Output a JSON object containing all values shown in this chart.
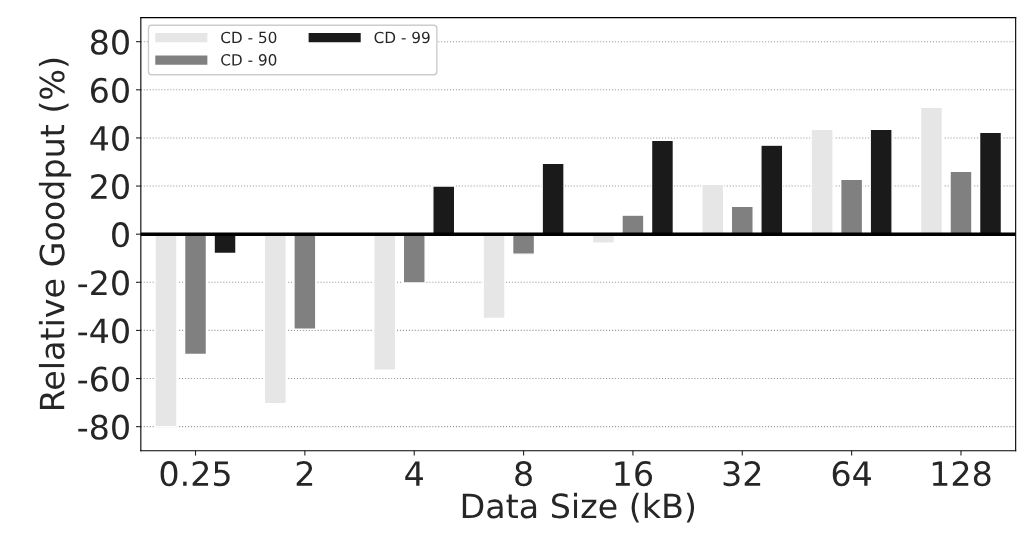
{
  "chart_data": {
    "type": "bar",
    "xlabel": "Data Size (kB)",
    "ylabel": "Relative Goodput (%)",
    "categories": [
      "0.25",
      "2",
      "4",
      "8",
      "16",
      "32",
      "64",
      "128"
    ],
    "series": [
      {
        "name": "CD - 50",
        "color": "#e6e6e6",
        "values": [
          -80,
          -70.5,
          -56.5,
          -35,
          -3.7,
          20.7,
          43.6,
          52.7
        ]
      },
      {
        "name": "CD - 90",
        "color": "#808080",
        "values": [
          -50,
          -39.5,
          -20.3,
          -8.3,
          7.9,
          11.6,
          22.8,
          26.1
        ]
      },
      {
        "name": "CD - 99",
        "color": "#1a1a1a",
        "values": [
          -8,
          null,
          20,
          29.5,
          39,
          37,
          43.6,
          42.3
        ]
      }
    ],
    "ylim": [
      -90,
      90
    ],
    "yticks": [
      -80,
      -60,
      -40,
      -20,
      0,
      20,
      40,
      60,
      80
    ],
    "ref_lines": [
      {
        "axis": "y",
        "value": 0,
        "color": "#000000"
      }
    ],
    "grid": "y",
    "legend": "top left"
  }
}
